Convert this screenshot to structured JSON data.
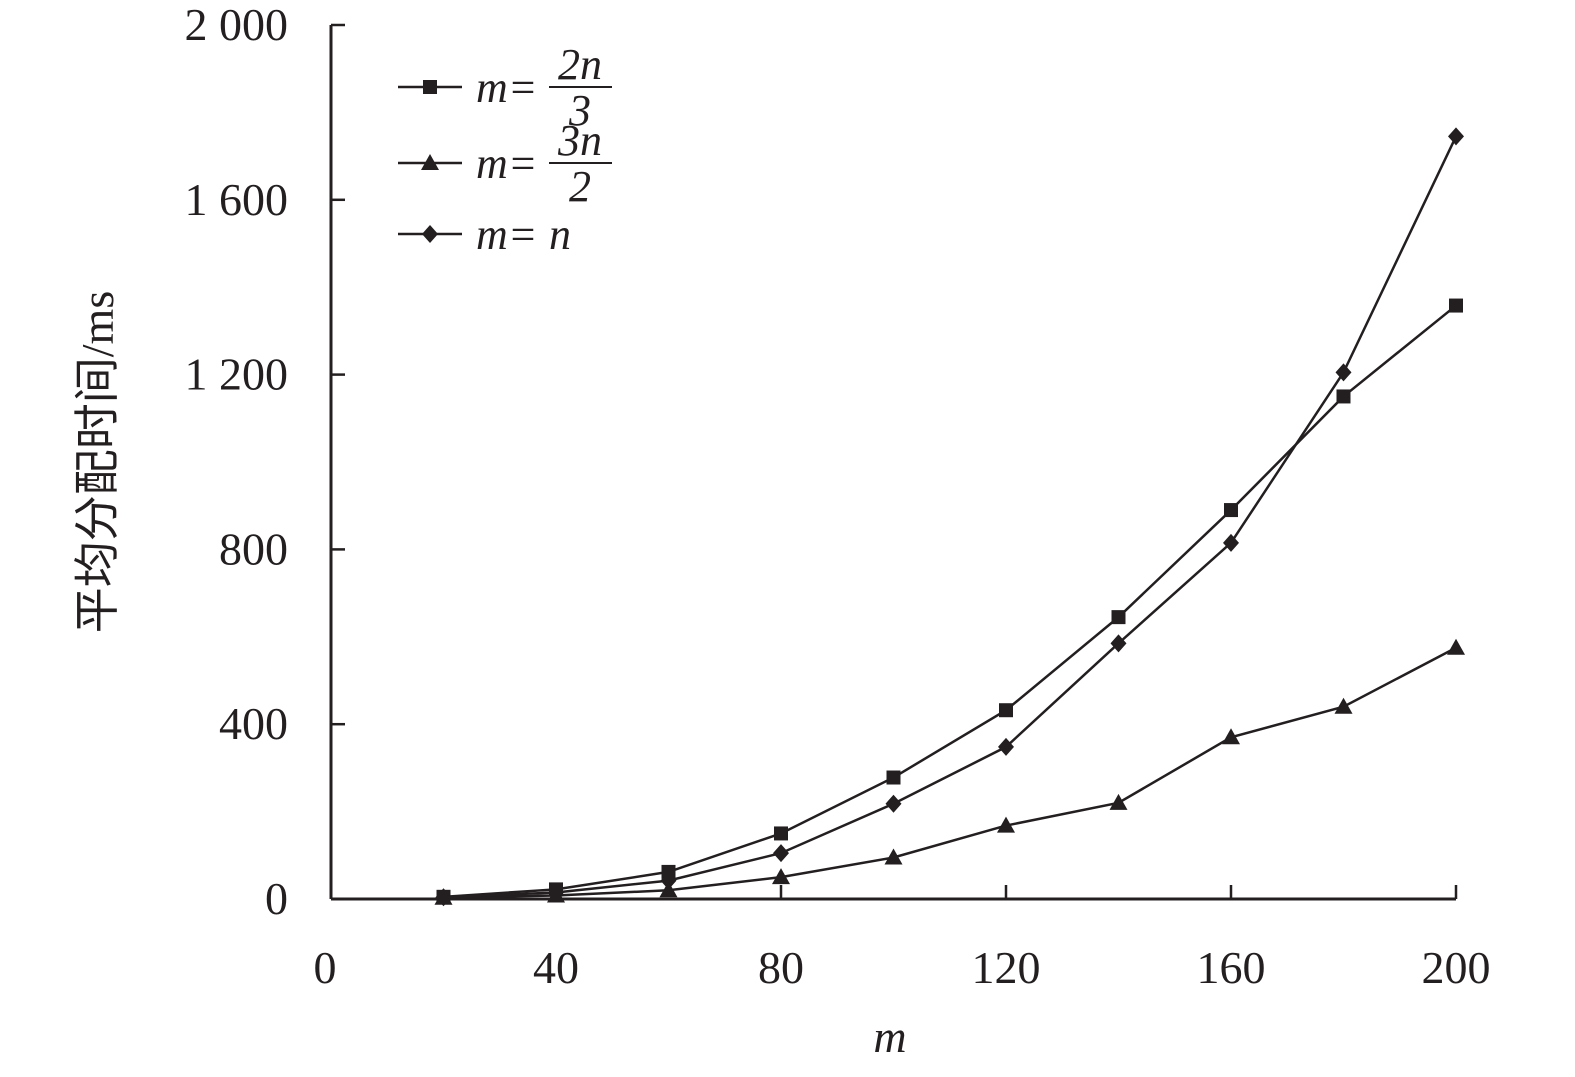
{
  "chart_data": {
    "type": "line",
    "xlabel": "m",
    "ylabel": "平均分配时间/ms",
    "xlim": [
      0,
      200
    ],
    "ylim": [
      0,
      2000
    ],
    "x_ticks": [
      {
        "value": 0,
        "label": "0"
      },
      {
        "value": 40,
        "label": "40"
      },
      {
        "value": 80,
        "label": "80"
      },
      {
        "value": 120,
        "label": "120"
      },
      {
        "value": 160,
        "label": "160"
      },
      {
        "value": 200,
        "label": "200"
      }
    ],
    "y_ticks": [
      {
        "value": 0,
        "label": "0"
      },
      {
        "value": 400,
        "label": "400"
      },
      {
        "value": 800,
        "label": "800"
      },
      {
        "value": 1200,
        "label": "1 200"
      },
      {
        "value": 1600,
        "label": "1 600"
      },
      {
        "value": 2000,
        "label": "2 000"
      }
    ],
    "grid": false,
    "legend_position": "top-left",
    "x": [
      20,
      40,
      60,
      80,
      100,
      120,
      140,
      160,
      180,
      200
    ],
    "series": [
      {
        "name": "m=2n/3",
        "name_parts": {
          "lhs": "m=",
          "num": "2n",
          "den": "3"
        },
        "marker": "square",
        "values": [
          5,
          22,
          62,
          150,
          278,
          432,
          645,
          890,
          1150,
          1358
        ]
      },
      {
        "name": "m=3n/2",
        "name_parts": {
          "lhs": "m=",
          "num": "3n",
          "den": "2"
        },
        "marker": "triangle",
        "values": [
          3,
          8,
          20,
          50,
          95,
          168,
          220,
          370,
          440,
          575
        ]
      },
      {
        "name": "m=n",
        "name_parts": {
          "lhs": "m=",
          "text": "n"
        },
        "marker": "diamond",
        "values": [
          4,
          15,
          42,
          105,
          218,
          348,
          585,
          815,
          1205,
          1745
        ]
      }
    ],
    "colors": {
      "line": "#231f20",
      "background": "#ffffff"
    }
  }
}
